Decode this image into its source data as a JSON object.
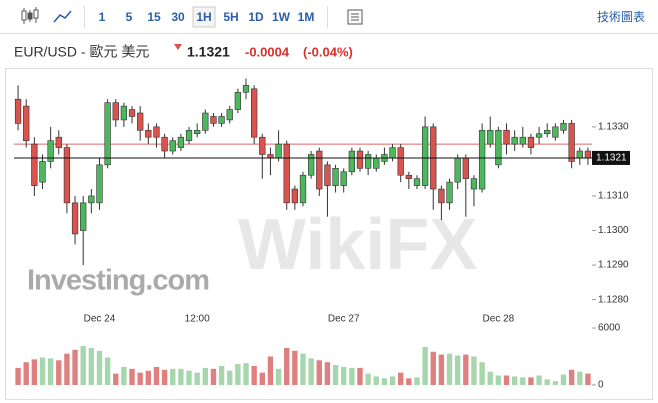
{
  "toolbar": {
    "intervals": [
      "1",
      "5",
      "15",
      "30",
      "1H",
      "5H",
      "1D",
      "1W",
      "1M"
    ],
    "active": "1H",
    "link": "技術圖表"
  },
  "header": {
    "symbol": "EUR/USD - 歐元 美元",
    "price": "1.1321",
    "change": "-0.0004",
    "change_pct": "(-0.04%)"
  },
  "watermarks": [
    "Investing.com",
    "WikiFX"
  ],
  "chart_data": {
    "type": "candlestick",
    "categories": [
      null,
      null,
      null,
      null,
      null,
      null,
      null,
      null,
      null,
      null,
      "Dec 24",
      null,
      null,
      null,
      null,
      null,
      null,
      null,
      null,
      null,
      null,
      null,
      "12:00",
      null,
      null,
      null,
      null,
      null,
      null,
      null,
      null,
      null,
      null,
      null,
      null,
      null,
      null,
      null,
      null,
      null,
      "Dec 27",
      null,
      null,
      null,
      null,
      null,
      null,
      null,
      null,
      null,
      null,
      null,
      null,
      null,
      null,
      null,
      null,
      null,
      null,
      "Dec 28",
      null,
      null,
      null,
      null,
      null,
      null,
      null,
      null,
      null,
      null,
      null
    ],
    "open": [
      1.1338,
      1.1336,
      1.1325,
      1.1314,
      1.132,
      1.1327,
      1.1324,
      1.1308,
      1.13,
      1.1308,
      1.1308,
      1.1319,
      1.1337,
      1.1332,
      1.1335,
      1.1334,
      1.1329,
      1.133,
      1.1327,
      1.1323,
      1.1324,
      1.1326,
      1.1328,
      1.1329,
      1.1333,
      1.1331,
      1.1332,
      1.1335,
      1.134,
      1.1341,
      1.1327,
      1.1322,
      1.1321,
      1.1325,
      1.1312,
      1.1308,
      1.1316,
      1.1323,
      1.1319,
      1.1313,
      1.1313,
      1.1317,
      1.1323,
      1.1318,
      1.1318,
      1.132,
      1.1321,
      1.1324,
      1.1316,
      1.1313,
      1.1313,
      1.133,
      1.1312,
      1.1308,
      1.1314,
      1.1321,
      1.1312,
      1.1312,
      1.1325,
      1.1319,
      1.1329,
      1.1325,
      1.1325,
      1.1327,
      1.1327,
      1.1328,
      1.1327,
      1.1329,
      1.1331,
      1.1321,
      1.1323
    ],
    "high": [
      1.1342,
      1.1338,
      1.1327,
      1.1322,
      1.133,
      1.1329,
      1.1325,
      1.131,
      1.131,
      1.1312,
      1.1321,
      1.1338,
      1.1338,
      1.1337,
      1.1336,
      1.1336,
      1.1331,
      1.1331,
      1.1328,
      1.1327,
      1.1328,
      1.133,
      1.1331,
      1.1335,
      1.1334,
      1.1334,
      1.1336,
      1.1341,
      1.1344,
      1.1342,
      1.1328,
      1.1324,
      1.1329,
      1.1326,
      1.1313,
      1.1317,
      1.1323,
      1.1324,
      1.132,
      1.1319,
      1.1318,
      1.1324,
      1.1324,
      1.1323,
      1.1322,
      1.1324,
      1.1325,
      1.1325,
      1.1317,
      1.1316,
      1.1333,
      1.1331,
      1.1313,
      1.1315,
      1.1322,
      1.1322,
      1.1316,
      1.1331,
      1.1333,
      1.133,
      1.1331,
      1.1329,
      1.133,
      1.1328,
      1.133,
      1.1331,
      1.1331,
      1.1332,
      1.1332,
      1.1324,
      1.1324
    ],
    "low": [
      1.1329,
      1.1324,
      1.131,
      1.1312,
      1.1318,
      1.1322,
      1.1305,
      1.1296,
      1.129,
      1.1305,
      1.1306,
      1.1318,
      1.133,
      1.133,
      1.1331,
      1.1326,
      1.1325,
      1.1324,
      1.1321,
      1.1322,
      1.1323,
      1.1325,
      1.1327,
      1.1328,
      1.133,
      1.133,
      1.1331,
      1.1334,
      1.1338,
      1.1325,
      1.1315,
      1.1316,
      1.132,
      1.1306,
      1.1306,
      1.1307,
      1.1315,
      1.131,
      1.1304,
      1.1311,
      1.1311,
      1.1316,
      1.1317,
      1.1316,
      1.1317,
      1.1319,
      1.132,
      1.1314,
      1.1312,
      1.1312,
      1.1312,
      1.1306,
      1.1303,
      1.1306,
      1.1312,
      1.1304,
      1.1307,
      1.1311,
      1.1324,
      1.1318,
      1.1322,
      1.1323,
      1.1324,
      1.1322,
      1.1325,
      1.1327,
      1.1326,
      1.1328,
      1.1318,
      1.1319,
      1.1319
    ],
    "close": [
      1.1331,
      1.1326,
      1.1313,
      1.132,
      1.1326,
      1.1324,
      1.1308,
      1.1299,
      1.1308,
      1.131,
      1.1319,
      1.1337,
      1.1332,
      1.1336,
      1.1333,
      1.1329,
      1.1327,
      1.1327,
      1.1323,
      1.1326,
      1.1327,
      1.1329,
      1.1329,
      1.1334,
      1.1331,
      1.1333,
      1.1335,
      1.134,
      1.1342,
      1.1327,
      1.1322,
      1.1321,
      1.1325,
      1.1308,
      1.1308,
      1.1316,
      1.1322,
      1.1312,
      1.1313,
      1.1318,
      1.1317,
      1.1323,
      1.1318,
      1.1322,
      1.1321,
      1.1322,
      1.1324,
      1.1316,
      1.1315,
      1.1315,
      1.133,
      1.1312,
      1.1308,
      1.1314,
      1.1321,
      1.1315,
      1.1315,
      1.1329,
      1.1329,
      1.1329,
      1.1325,
      1.1327,
      1.1327,
      1.1324,
      1.1328,
      1.1329,
      1.133,
      1.1331,
      1.132,
      1.1323,
      1.1321
    ],
    "volume": [
      1800,
      2400,
      2700,
      2900,
      2800,
      2600,
      3300,
      3700,
      4100,
      3900,
      3600,
      2900,
      1200,
      1900,
      1700,
      1300,
      1500,
      1900,
      1600,
      1700,
      1700,
      1500,
      1300,
      1800,
      1700,
      2000,
      1500,
      2200,
      2300,
      2000,
      1300,
      3000,
      1700,
      3900,
      3600,
      3300,
      2800,
      2600,
      2400,
      2100,
      1900,
      1800,
      1800,
      1200,
      900,
      700,
      900,
      1300,
      700,
      800,
      4000,
      3500,
      3200,
      3300,
      3100,
      3200,
      3000,
      2400,
      1400,
      1000,
      1000,
      900,
      800,
      800,
      1000,
      600,
      400,
      1100,
      1600,
      1400,
      1200
    ],
    "up_color": "#4cb75c",
    "down_color": "#d9534f",
    "volume_up_color": "#a5d6ac",
    "volume_down_color": "#df7f7f",
    "ylim": [
      1.1277,
      1.1345
    ],
    "yticks": [
      {
        "value": 1.128,
        "label": "1.1280"
      },
      {
        "value": 1.129,
        "label": "1.1290"
      },
      {
        "value": 1.13,
        "label": "1.1300"
      },
      {
        "value": 1.131,
        "label": "1.1310"
      },
      {
        "value": 1.133,
        "label": "1.1330"
      }
    ],
    "last_price": 1.1321,
    "prev_close": 1.1325,
    "prev_close_color": "#e06666",
    "y2lim": [
      0,
      6000
    ],
    "y2ticks": [
      0,
      6000
    ]
  }
}
